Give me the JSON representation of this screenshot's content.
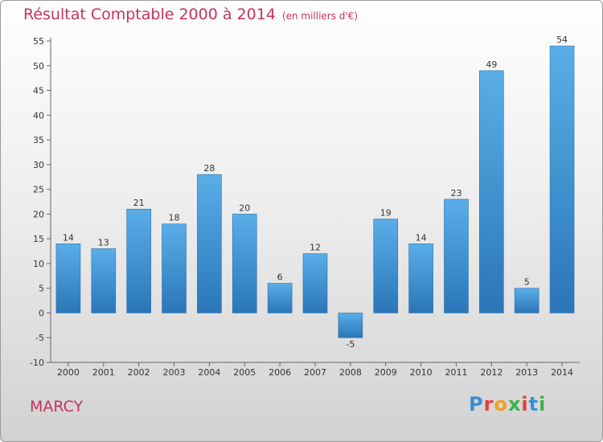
{
  "header": {
    "title": "Résultat Comptable 2000 à 2014",
    "unit": "(en milliers d'€)"
  },
  "footer": {
    "city": "MARCY",
    "logo_letters": [
      "P",
      "r",
      "o",
      "x",
      "i",
      "t",
      "i"
    ]
  },
  "colors": {
    "title": "#c8325a",
    "bar_top": "#5aaee8",
    "bar_bottom": "#2a76b8",
    "logo": [
      "#3a8ed6",
      "#e0423a",
      "#f0a020",
      "#3bb34a",
      "#e0423a",
      "#3a8ed6",
      "#3bb34a"
    ]
  },
  "chart_data": {
    "type": "bar",
    "title": "Résultat Comptable 2000 à 2014",
    "unit": "(en milliers d'€)",
    "categories": [
      "2000",
      "2001",
      "2002",
      "2003",
      "2004",
      "2005",
      "2006",
      "2007",
      "2008",
      "2009",
      "2010",
      "2011",
      "2012",
      "2013",
      "2014"
    ],
    "values": [
      14,
      13,
      21,
      18,
      28,
      20,
      6,
      12,
      -5,
      19,
      14,
      23,
      49,
      5,
      54
    ],
    "ylim": [
      -10,
      55
    ],
    "yticks": [
      -10,
      -5,
      0,
      5,
      10,
      15,
      20,
      25,
      30,
      35,
      40,
      45,
      50,
      55
    ],
    "grid": false
  }
}
